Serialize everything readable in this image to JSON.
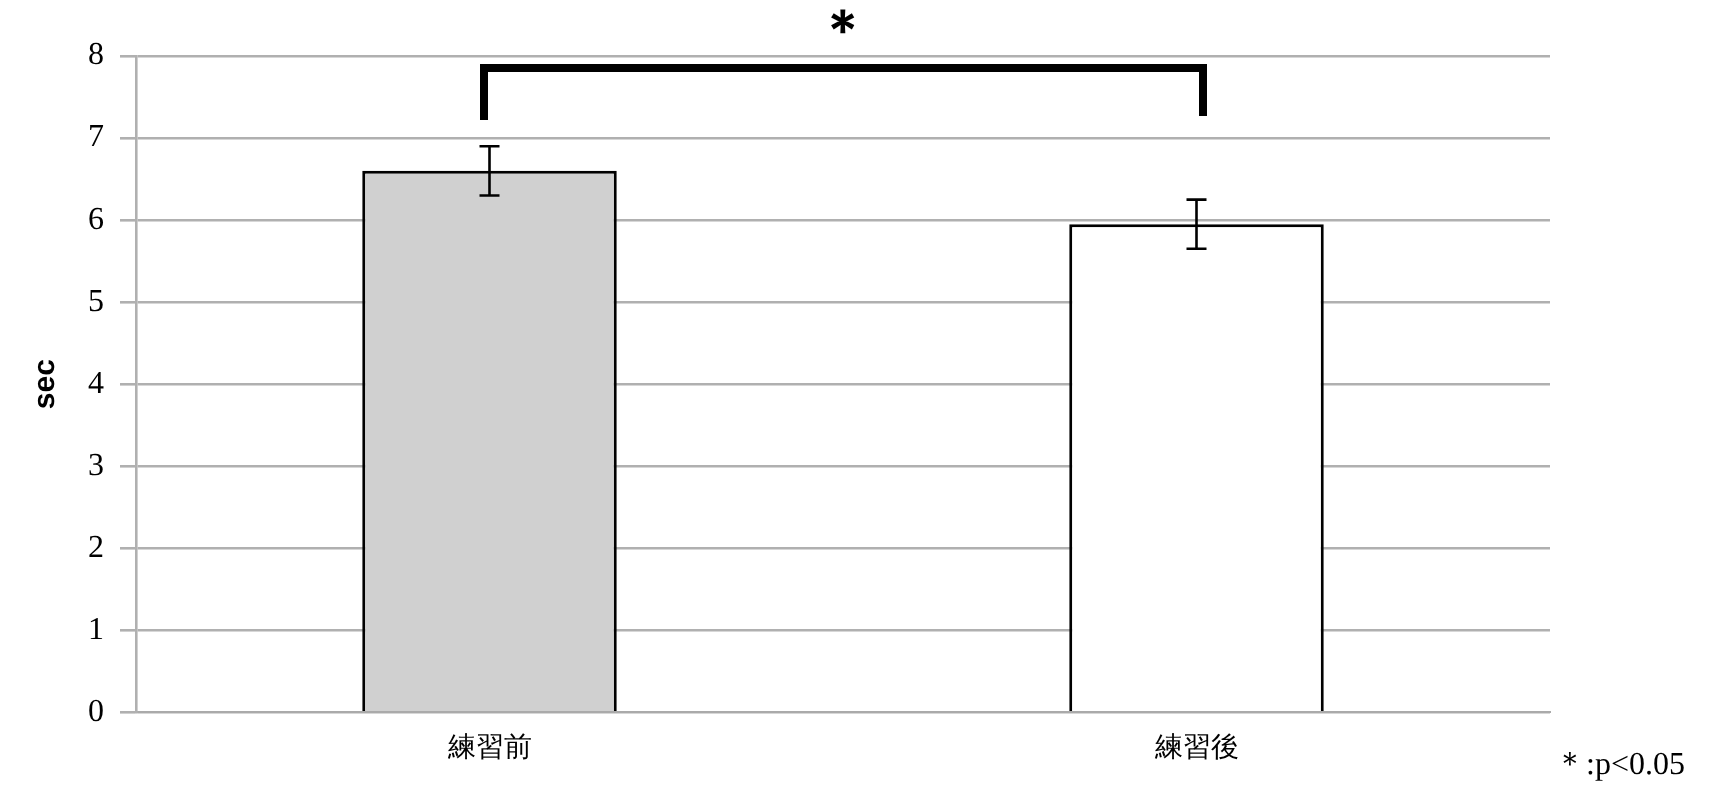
{
  "chart_data": {
    "type": "bar",
    "ylabel": "sec",
    "categories": [
      "練習前",
      "練習後"
    ],
    "values": [
      6.6,
      5.95
    ],
    "errors": [
      0.3,
      0.3
    ],
    "colors": [
      "#d0d0d0",
      "#ffffff"
    ],
    "ylim": [
      0,
      8
    ],
    "yticks": [
      0,
      1,
      2,
      3,
      4,
      5,
      6,
      7,
      8
    ],
    "grid": "y",
    "legend": false,
    "annotations": [
      "＊",
      "＊:p<0.05"
    ]
  }
}
